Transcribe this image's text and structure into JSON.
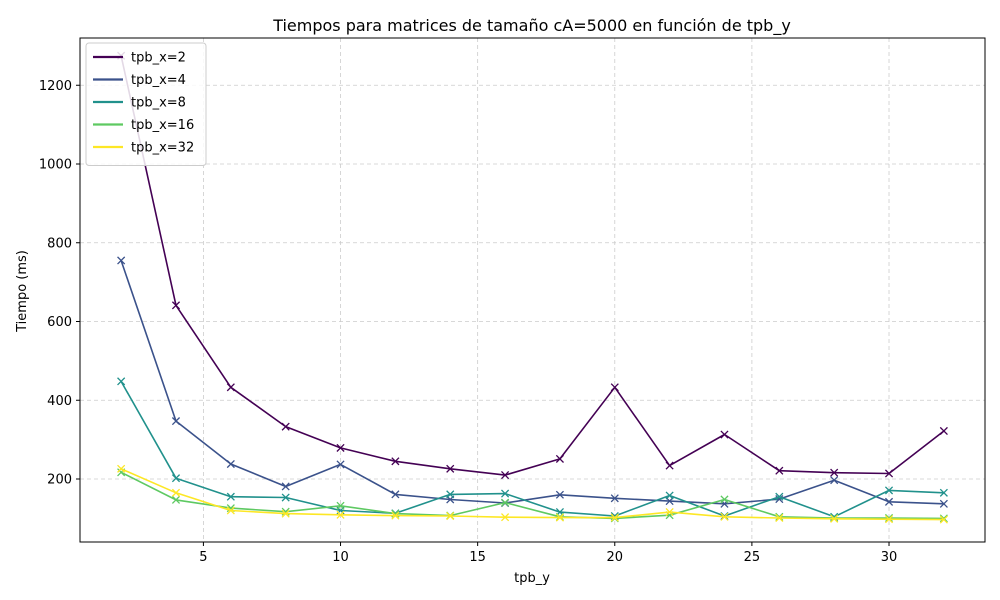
{
  "chart_data": {
    "type": "line",
    "title": "Tiempos para matrices de tamaño cA=5000 en función de tpb_y",
    "xlabel": "tpb_y",
    "ylabel": "Tiempo (ms)",
    "xlim": [
      0.5,
      33.5
    ],
    "ylim": [
      40,
      1320
    ],
    "x_ticks": [
      5,
      10,
      15,
      20,
      25,
      30
    ],
    "y_ticks": [
      200,
      400,
      600,
      800,
      1000,
      1200
    ],
    "grid": true,
    "legend_position": "top-left",
    "marker": "x",
    "x": [
      2,
      4,
      6,
      8,
      10,
      12,
      14,
      16,
      18,
      20,
      22,
      24,
      26,
      28,
      30,
      32
    ],
    "series": [
      {
        "name": "tpb_x=2",
        "color": "#440154",
        "values": [
          1275,
          641,
          433,
          333,
          279,
          245,
          226,
          210,
          251,
          433,
          234,
          313,
          221,
          216,
          214,
          322
        ]
      },
      {
        "name": "tpb_x=4",
        "color": "#3b528b",
        "values": [
          755,
          347,
          238,
          181,
          237,
          161,
          148,
          139,
          160,
          151,
          144,
          137,
          149,
          197,
          142,
          137
        ]
      },
      {
        "name": "tpb_x=8",
        "color": "#21918c",
        "values": [
          448,
          202,
          155,
          153,
          120,
          113,
          161,
          163,
          116,
          106,
          158,
          106,
          155,
          104,
          171,
          165
        ]
      },
      {
        "name": "tpb_x=16",
        "color": "#5ec962",
        "values": [
          217,
          147,
          126,
          117,
          132,
          112,
          107,
          140,
          104,
          100,
          108,
          148,
          104,
          101,
          101,
          100
        ]
      },
      {
        "name": "tpb_x=32",
        "color": "#fde725",
        "values": [
          226,
          165,
          120,
          112,
          109,
          107,
          106,
          103,
          102,
          102,
          116,
          104,
          101,
          99,
          98,
          97
        ]
      }
    ]
  }
}
